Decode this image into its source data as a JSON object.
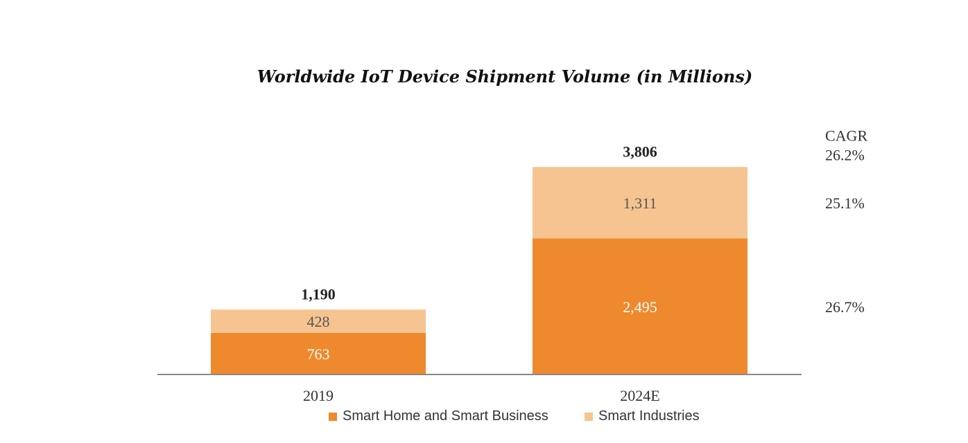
{
  "chart_data": {
    "type": "bar",
    "stacked": true,
    "title": "Worldwide IoT Device Shipment Volume (in Millions)",
    "xlabel": "",
    "ylabel": "",
    "categories": [
      "2019",
      "2024E"
    ],
    "series": [
      {
        "name": "Smart Home and Smart Business",
        "values": [
          763,
          2495
        ],
        "labels": [
          "763",
          "2,495"
        ],
        "color": "#EE8A2D"
      },
      {
        "name": "Smart Industries",
        "values": [
          428,
          1311
        ],
        "labels": [
          "428",
          "1,311"
        ],
        "color": "#F6C490"
      }
    ],
    "totals": [
      1190,
      3806
    ],
    "total_labels": [
      "1,190",
      "3,806"
    ],
    "ylim": [
      0,
      4000
    ],
    "grid": false,
    "legend_position": "bottom",
    "cagr": {
      "header": "CAGR",
      "total": "26.2%",
      "series_values": [
        "26.7%",
        "25.1%"
      ]
    }
  }
}
